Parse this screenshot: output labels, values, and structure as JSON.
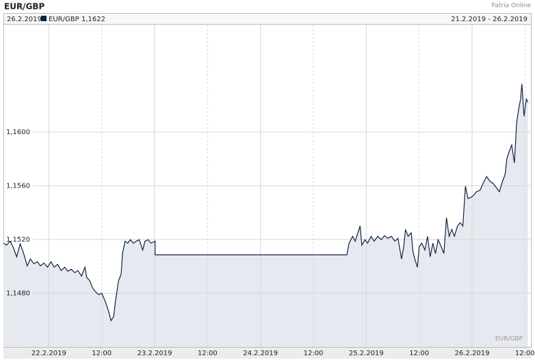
{
  "chart_data": {
    "type": "line",
    "title": "EUR/GBP",
    "source": "Patria Online",
    "current": {
      "date": "26.2.2019",
      "symbol": "EUR/GBP",
      "value": "1,1622"
    },
    "range": "21.2.2019 - 26.2.2019",
    "watermark": "EUR/GBP",
    "xlim": [
      -10.3,
      109.5
    ],
    "ylim": [
      1.144,
      1.168
    ],
    "xticks": [
      {
        "value": 0,
        "label": "22.2.2019"
      },
      {
        "value": 12,
        "label": "12:00"
      },
      {
        "value": 24,
        "label": "23.2.2019"
      },
      {
        "value": 36,
        "label": "12:00"
      },
      {
        "value": 48,
        "label": "24.2.2019"
      },
      {
        "value": 60,
        "label": "12:00"
      },
      {
        "value": 72,
        "label": "25.2.2019"
      },
      {
        "value": 84,
        "label": "12:00"
      },
      {
        "value": 96,
        "label": "26.2.2019"
      },
      {
        "value": 108,
        "label": "12:00"
      }
    ],
    "yticks": [
      {
        "value": 1.148,
        "label": "1,1480"
      },
      {
        "value": 1.152,
        "label": "1,1520"
      },
      {
        "value": 1.156,
        "label": "1,1560"
      },
      {
        "value": 1.16,
        "label": "1,1600"
      }
    ],
    "grid": true,
    "fill_color": "#e6e9ef",
    "series": [
      {
        "name": "EUR/GBP",
        "color": "#0d2240",
        "x": [
          -10.3,
          -9.6,
          -8.8,
          -8.0,
          -7.3,
          -6.5,
          -5.7,
          -4.9,
          -4.2,
          -3.4,
          -2.6,
          -1.9,
          -1.1,
          -0.3,
          0.5,
          1.2,
          2.0,
          2.8,
          3.6,
          4.3,
          5.1,
          5.9,
          6.6,
          7.4,
          8.2,
          8.6,
          9.3,
          9.9,
          10.5,
          11.3,
          12.0,
          12.8,
          13.6,
          14.1,
          14.7,
          15.1,
          15.8,
          16.4,
          16.7,
          17.3,
          17.9,
          18.5,
          19.2,
          19.8,
          20.5,
          21.3,
          21.8,
          22.5,
          23.2,
          24.1,
          24.1,
          67.6,
          68.1,
          68.9,
          69.5,
          70.1,
          70.6,
          71.0,
          71.7,
          72.3,
          73.1,
          73.8,
          74.6,
          75.4,
          76.1,
          76.9,
          77.7,
          78.5,
          79.2,
          80.0,
          80.5,
          80.9,
          81.5,
          82.2,
          82.6,
          83.1,
          83.6,
          84.0,
          84.6,
          85.3,
          85.9,
          86.5,
          87.1,
          87.7,
          88.3,
          89.0,
          89.6,
          90.2,
          90.8,
          91.4,
          92.0,
          92.7,
          93.3,
          93.9,
          94.5,
          95.1,
          95.8,
          96.4,
          97.0,
          97.8,
          98.5,
          99.3,
          100.1,
          100.8,
          101.6,
          102.2,
          102.9,
          103.5,
          103.9,
          104.4,
          105.0,
          105.6,
          106.1,
          106.6,
          107.0,
          107.3,
          107.8,
          108.3,
          108.7
        ],
        "values": [
          1.15173,
          1.15158,
          1.15188,
          1.15137,
          1.15071,
          1.15168,
          1.15096,
          1.15004,
          1.15056,
          1.1502,
          1.15035,
          1.15004,
          1.15025,
          1.14994,
          1.15035,
          1.14994,
          1.15015,
          1.14969,
          1.14994,
          1.14964,
          1.14979,
          1.14953,
          1.14969,
          1.14928,
          1.14994,
          1.14918,
          1.14892,
          1.14841,
          1.14815,
          1.1479,
          1.148,
          1.14739,
          1.14662,
          1.14596,
          1.14626,
          1.14739,
          1.14892,
          1.14943,
          1.15096,
          1.15188,
          1.15173,
          1.15199,
          1.15173,
          1.15188,
          1.15199,
          1.15122,
          1.15188,
          1.15199,
          1.15173,
          1.15188,
          1.15086,
          1.15086,
          1.15173,
          1.15224,
          1.15188,
          1.1525,
          1.15301,
          1.15158,
          1.15199,
          1.15173,
          1.15224,
          1.15188,
          1.15224,
          1.15199,
          1.15229,
          1.15209,
          1.15224,
          1.15188,
          1.15209,
          1.15056,
          1.15147,
          1.15275,
          1.15224,
          1.1525,
          1.15107,
          1.15045,
          1.14994,
          1.15147,
          1.15173,
          1.15122,
          1.15224,
          1.15071,
          1.15173,
          1.15096,
          1.15199,
          1.15147,
          1.15096,
          1.15362,
          1.15224,
          1.15275,
          1.15224,
          1.15301,
          1.15326,
          1.15301,
          1.15597,
          1.15505,
          1.15515,
          1.15531,
          1.15556,
          1.15567,
          1.15618,
          1.15669,
          1.15633,
          1.15618,
          1.15582,
          1.15556,
          1.15633,
          1.15684,
          1.15802,
          1.15853,
          1.15904,
          1.15771,
          1.16065,
          1.16178,
          1.16244,
          1.16359,
          1.16118,
          1.16246,
          1.16221
        ]
      }
    ]
  }
}
